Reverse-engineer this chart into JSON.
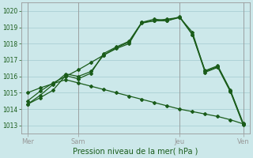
{
  "xlabel": "Pression niveau de la mer( hPa )",
  "bg_color": "#cce8ea",
  "line_color": "#1a5c1a",
  "grid_color": "#aacfd4",
  "axis_color": "#999999",
  "tick_label_color": "#1a5c1a",
  "xlabel_color": "#1a5c1a",
  "ylim": [
    1012.5,
    1020.5
  ],
  "yticks": [
    1013,
    1014,
    1015,
    1016,
    1017,
    1018,
    1019,
    1020
  ],
  "day_labels": [
    "Mer",
    "Sam",
    "Jeu",
    "Ven"
  ],
  "series1": [
    1014.3,
    1014.85,
    1015.5,
    1016.15,
    1016.0,
    1016.3,
    1017.3,
    1017.75,
    1018.1,
    1019.25,
    1019.4,
    1019.5,
    1019.6,
    1018.7,
    1016.3,
    1016.6,
    1015.1,
    1013.1
  ],
  "series2": [
    1014.5,
    1015.1,
    1015.6,
    1016.0,
    1016.4,
    1016.85,
    1017.3,
    1017.7,
    1018.0,
    1019.3,
    1019.4,
    1019.4,
    1019.6,
    1018.55,
    1016.25,
    1016.55,
    1015.05,
    1013.05
  ],
  "series3": [
    1014.3,
    1014.7,
    1015.15,
    1016.05,
    1015.85,
    1016.2,
    1017.4,
    1017.8,
    1018.15,
    1019.3,
    1019.5,
    1019.4,
    1019.65,
    1018.55,
    1016.35,
    1016.65,
    1015.15,
    1013.15
  ],
  "series4": [
    1015.0,
    1015.3,
    1015.55,
    1015.8,
    1015.6,
    1015.4,
    1015.2,
    1015.0,
    1014.8,
    1014.6,
    1014.4,
    1014.2,
    1014.0,
    1013.85,
    1013.7,
    1013.55,
    1013.35,
    1013.1
  ],
  "n_points": 18
}
